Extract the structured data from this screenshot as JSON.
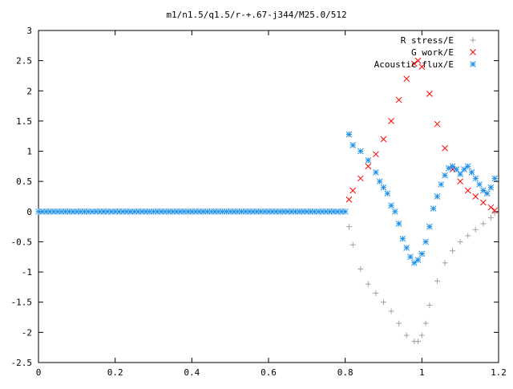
{
  "chart_data": {
    "type": "scatter",
    "title": "m1/n1.5/q1.5/r-+.67-j344/M25.0/512",
    "xlabel": "",
    "ylabel": "",
    "xlim": [
      0,
      1.2
    ],
    "ylim": [
      -2.5,
      3
    ],
    "x_ticks": [
      "0",
      "0.2",
      "0.4",
      "0.6",
      "0.8",
      "1",
      "1.2"
    ],
    "y_ticks": [
      "3",
      "2.5",
      "2",
      "1.5",
      "1",
      "0.5",
      "0",
      "-0.5",
      "-1",
      "-1.5",
      "-2",
      "-2.5"
    ],
    "grid": false,
    "legend_position": "top-right",
    "series": [
      {
        "name": "R stress/E",
        "marker": "plus",
        "color": "#a0a0a0",
        "x": [
          0.81,
          0.82,
          0.84,
          0.86,
          0.88,
          0.9,
          0.92,
          0.94,
          0.96,
          0.98,
          0.99,
          1.0,
          1.01,
          1.02,
          1.04,
          1.06,
          1.08,
          1.1,
          1.12,
          1.14,
          1.16,
          1.18,
          1.19
        ],
        "y": [
          -0.25,
          -0.55,
          -0.95,
          -1.2,
          -1.35,
          -1.5,
          -1.65,
          -1.85,
          -2.05,
          -2.15,
          -2.15,
          -2.05,
          -1.85,
          -1.55,
          -1.15,
          -0.85,
          -0.65,
          -0.5,
          -0.4,
          -0.3,
          -0.2,
          -0.1,
          -0.02
        ]
      },
      {
        "name": "G work/E",
        "marker": "cross",
        "color": "#ff0000",
        "x": [
          0.81,
          0.82,
          0.84,
          0.86,
          0.88,
          0.9,
          0.92,
          0.94,
          0.96,
          0.98,
          0.99,
          1.0,
          1.02,
          1.04,
          1.06,
          1.08,
          1.1,
          1.12,
          1.14,
          1.16,
          1.18,
          1.19
        ],
        "y": [
          0.2,
          0.35,
          0.55,
          0.75,
          0.95,
          1.2,
          1.5,
          1.85,
          2.2,
          2.45,
          2.5,
          2.4,
          1.95,
          1.45,
          1.05,
          0.7,
          0.5,
          0.35,
          0.25,
          0.15,
          0.07,
          0.02
        ]
      },
      {
        "name": "Acoustic flux/E",
        "marker": "star",
        "color": "#1e90e6",
        "x": [
          0.81,
          0.82,
          0.84,
          0.86,
          0.88,
          0.89,
          0.9,
          0.91,
          0.92,
          0.93,
          0.94,
          0.95,
          0.96,
          0.97,
          0.98,
          0.99,
          1.0,
          1.01,
          1.02,
          1.03,
          1.04,
          1.05,
          1.06,
          1.07,
          1.08,
          1.09,
          1.1,
          1.11,
          1.12,
          1.13,
          1.14,
          1.15,
          1.16,
          1.17,
          1.18,
          1.19
        ],
        "y": [
          1.28,
          1.1,
          1.0,
          0.85,
          0.65,
          0.5,
          0.4,
          0.3,
          0.1,
          0.0,
          -0.2,
          -0.45,
          -0.6,
          -0.75,
          -0.85,
          -0.8,
          -0.7,
          -0.5,
          -0.25,
          0.05,
          0.25,
          0.45,
          0.6,
          0.72,
          0.75,
          0.7,
          0.62,
          0.7,
          0.75,
          0.65,
          0.55,
          0.45,
          0.35,
          0.3,
          0.4,
          0.55
        ]
      },
      {
        "name": "",
        "marker": "star",
        "color": "#1e90e6",
        "x": [
          0.0,
          0.01,
          0.02,
          0.03,
          0.04,
          0.05,
          0.06,
          0.07,
          0.08,
          0.09,
          0.1,
          0.11,
          0.12,
          0.13,
          0.14,
          0.15,
          0.16,
          0.17,
          0.18,
          0.19,
          0.2,
          0.21,
          0.22,
          0.23,
          0.24,
          0.25,
          0.26,
          0.27,
          0.28,
          0.29,
          0.3,
          0.31,
          0.32,
          0.33,
          0.34,
          0.35,
          0.36,
          0.37,
          0.38,
          0.39,
          0.4,
          0.41,
          0.42,
          0.43,
          0.44,
          0.45,
          0.46,
          0.47,
          0.48,
          0.49,
          0.5,
          0.51,
          0.52,
          0.53,
          0.54,
          0.55,
          0.56,
          0.57,
          0.58,
          0.59,
          0.6,
          0.61,
          0.62,
          0.63,
          0.64,
          0.65,
          0.66,
          0.67,
          0.68,
          0.69,
          0.7,
          0.71,
          0.72,
          0.73,
          0.74,
          0.75,
          0.76,
          0.77,
          0.78,
          0.79,
          0.8
        ],
        "y": [
          0,
          0,
          0,
          0,
          0,
          0,
          0,
          0,
          0,
          0,
          0,
          0,
          0,
          0,
          0,
          0,
          0,
          0,
          0,
          0,
          0,
          0,
          0,
          0,
          0,
          0,
          0,
          0,
          0,
          0,
          0,
          0,
          0,
          0,
          0,
          0,
          0,
          0,
          0,
          0,
          0,
          0,
          0,
          0,
          0,
          0,
          0,
          0,
          0,
          0,
          0,
          0,
          0,
          0,
          0,
          0,
          0,
          0,
          0,
          0,
          0,
          0,
          0,
          0,
          0,
          0,
          0,
          0,
          0,
          0,
          0,
          0,
          0,
          0,
          0,
          0,
          0,
          0,
          0,
          0,
          0
        ]
      }
    ]
  }
}
